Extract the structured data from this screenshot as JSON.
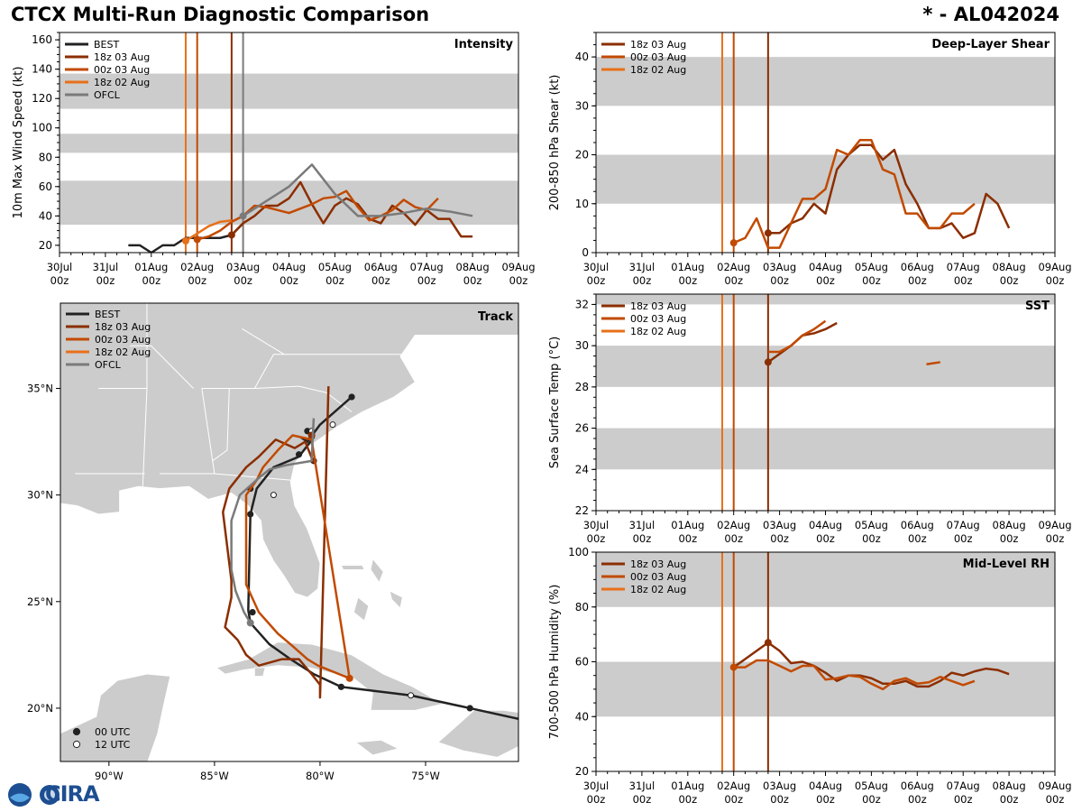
{
  "header": {
    "title": "CTCX Multi-Run Diagnostic Comparison",
    "storm_id": "* - AL042024"
  },
  "colors": {
    "best": "#222222",
    "run18z03": "#8b2e00",
    "run00z03": "#c24a00",
    "run18z02": "#e8701a",
    "ofcl": "#7a7a7a",
    "band": "#cccccc"
  },
  "time_axis": {
    "ticks": [
      "30Jul",
      "31Jul",
      "01Aug",
      "02Aug",
      "03Aug",
      "04Aug",
      "05Aug",
      "06Aug",
      "07Aug",
      "08Aug",
      "09Aug"
    ],
    "sublabel": "00z"
  },
  "chart_data": [
    {
      "id": "intensity",
      "type": "line",
      "title": "Intensity",
      "xlabel": "",
      "ylabel": "10m Max Wind Speed (kt)",
      "xlim": [
        0,
        10
      ],
      "ylim": [
        15,
        165
      ],
      "yticks": [
        20,
        40,
        60,
        80,
        100,
        120,
        140,
        160
      ],
      "bands": [
        [
          34,
          64
        ],
        [
          83,
          96
        ],
        [
          113,
          137
        ]
      ],
      "vlines": [
        {
          "x": 2.75,
          "series": "run18z02"
        },
        {
          "x": 3.0,
          "series": "run00z03"
        },
        {
          "x": 3.75,
          "series": "run18z03"
        },
        {
          "x": 4.0,
          "series": "ofcl"
        }
      ],
      "legend": [
        "BEST",
        "18z 03 Aug",
        "00z 03 Aug",
        "18z 02 Aug",
        "OFCL"
      ],
      "legend_series": [
        "best",
        "run18z03",
        "run00z03",
        "run18z02",
        "ofcl"
      ],
      "series": [
        {
          "name": "BEST",
          "key": "best",
          "x": [
            1.5,
            1.75,
            2.0,
            2.25,
            2.5,
            2.75,
            3.0,
            3.25,
            3.5,
            3.75,
            4.0
          ],
          "y": [
            20,
            20,
            15,
            20,
            20,
            25,
            25,
            25,
            25,
            27,
            35
          ]
        },
        {
          "name": "18z 03 Aug",
          "key": "run18z03",
          "x": [
            3.75,
            4.0,
            4.25,
            4.5,
            4.75,
            5.0,
            5.25,
            5.5,
            5.75,
            6.0,
            6.25,
            6.5,
            6.75,
            7.0,
            7.25,
            7.5,
            7.75,
            8.0,
            8.25,
            8.5,
            8.75,
            9.0
          ],
          "y": [
            27,
            35,
            40,
            47,
            47,
            52,
            63,
            48,
            35,
            47,
            52,
            48,
            38,
            35,
            47,
            42,
            34,
            44,
            38,
            38,
            26,
            26
          ],
          "dot": [
            3.75,
            27
          ]
        },
        {
          "name": "00z 03 Aug",
          "key": "run00z03",
          "x": [
            3.0,
            3.25,
            3.5,
            3.75,
            4.0,
            4.25,
            4.5,
            4.75,
            5.0,
            5.25,
            5.5,
            5.75,
            6.0,
            6.25,
            6.5,
            6.75,
            7.0,
            7.25,
            7.5,
            7.75,
            8.0,
            8.25
          ],
          "y": [
            24,
            26,
            30,
            36,
            40,
            47,
            46,
            44,
            42,
            45,
            48,
            52,
            53,
            57,
            46,
            37,
            40,
            44,
            51,
            46,
            44,
            52
          ],
          "dot": [
            3.0,
            24
          ]
        },
        {
          "name": "18z 02 Aug",
          "key": "run18z02",
          "x": [
            2.75,
            3.0,
            3.25,
            3.5,
            3.75
          ],
          "y": [
            23,
            28,
            33,
            36,
            37
          ],
          "dot": [
            2.75,
            23
          ]
        },
        {
          "name": "OFCL",
          "key": "ofcl",
          "x": [
            4.0,
            4.5,
            5.0,
            5.5,
            6.0,
            6.5,
            7.0,
            7.5,
            8.0,
            8.5,
            9.0
          ],
          "y": [
            40,
            50,
            60,
            75,
            55,
            40,
            40,
            42,
            45,
            43,
            40
          ],
          "dot": [
            4.0,
            40
          ]
        }
      ]
    },
    {
      "id": "shear",
      "type": "line",
      "title": "Deep-Layer Shear",
      "xlabel": "",
      "ylabel": "200-850 hPa Shear (kt)",
      "xlim": [
        0,
        10
      ],
      "ylim": [
        0,
        45
      ],
      "yticks": [
        0,
        10,
        20,
        30,
        40
      ],
      "bands": [
        [
          10,
          20
        ],
        [
          30,
          40
        ]
      ],
      "vlines": [
        {
          "x": 2.75,
          "series": "run18z02"
        },
        {
          "x": 3.0,
          "series": "run00z03"
        },
        {
          "x": 3.75,
          "series": "run18z03"
        }
      ],
      "legend": [
        "18z 03 Aug",
        "00z 03 Aug",
        "18z 02 Aug"
      ],
      "legend_series": [
        "run18z03",
        "run00z03",
        "run18z02"
      ],
      "series": [
        {
          "name": "18z 03 Aug",
          "key": "run18z03",
          "x": [
            3.75,
            4.0,
            4.25,
            4.5,
            4.75,
            5.0,
            5.25,
            5.5,
            5.75,
            6.0,
            6.25,
            6.5,
            6.75,
            7.0,
            7.25,
            7.5,
            7.75,
            8.0,
            8.25,
            8.5,
            8.75,
            9.0
          ],
          "y": [
            4,
            4,
            6,
            7,
            10,
            8,
            17,
            20,
            22,
            22,
            19,
            21,
            14,
            10,
            5,
            5,
            6,
            3,
            4,
            12,
            10,
            5
          ],
          "dot": [
            3.75,
            4
          ]
        },
        {
          "name": "00z 03 Aug",
          "key": "run00z03",
          "x": [
            3.0,
            3.25,
            3.5,
            3.75,
            4.0,
            4.25,
            4.5,
            4.75,
            5.0,
            5.25,
            5.5,
            5.75,
            6.0,
            6.25,
            6.5,
            6.75,
            7.0,
            7.25,
            7.5,
            7.75,
            8.0,
            8.25
          ],
          "y": [
            2,
            3,
            7,
            1,
            1,
            6,
            11,
            11,
            13,
            21,
            20,
            23,
            23,
            17,
            16,
            8,
            8,
            5,
            5,
            8,
            8,
            10
          ],
          "dot": [
            3.0,
            2
          ]
        },
        {
          "name": "18z 02 Aug",
          "key": "run18z02",
          "x": [],
          "y": []
        }
      ]
    },
    {
      "id": "sst",
      "type": "line",
      "title": "SST",
      "xlabel": "",
      "ylabel": "Sea Surface Temp (°C)",
      "xlim": [
        0,
        10
      ],
      "ylim": [
        22,
        32.5
      ],
      "yticks": [
        22,
        24,
        26,
        28,
        30,
        32
      ],
      "bands": [
        [
          24,
          26
        ],
        [
          28,
          30
        ],
        [
          32,
          33
        ]
      ],
      "vlines": [
        {
          "x": 2.75,
          "series": "run18z02"
        },
        {
          "x": 3.0,
          "series": "run00z03"
        },
        {
          "x": 3.75,
          "series": "run18z03"
        }
      ],
      "legend": [
        "18z 03 Aug",
        "00z 03 Aug",
        "18z 02 Aug"
      ],
      "legend_series": [
        "run18z03",
        "run00z03",
        "run18z02"
      ],
      "series": [
        {
          "name": "18z 03 Aug",
          "key": "run18z03",
          "x": [
            3.75,
            4.0,
            4.25,
            4.5,
            4.75,
            5.0,
            5.25
          ],
          "y": [
            29.2,
            29.6,
            30.0,
            30.5,
            30.6,
            30.8,
            31.1
          ],
          "dot": [
            3.75,
            29.2
          ]
        },
        {
          "name": "00z 03 Aug",
          "key": "run00z03",
          "x": [
            3.75,
            4.0,
            4.25,
            4.5,
            4.75,
            5.0
          ],
          "y": [
            29.7,
            29.7,
            30.0,
            30.5,
            30.8,
            31.2
          ]
        },
        {
          "name": "00z 03 Aug seg",
          "key": "run00z03",
          "x": [
            7.2,
            7.5
          ],
          "y": [
            29.1,
            29.2
          ]
        }
      ]
    },
    {
      "id": "rh",
      "type": "line",
      "title": "Mid-Level RH",
      "xlabel": "",
      "ylabel": "700-500 hPa Humidity (%)",
      "xlim": [
        0,
        10
      ],
      "ylim": [
        20,
        100
      ],
      "yticks": [
        20,
        40,
        60,
        80,
        100
      ],
      "bands": [
        [
          40,
          60
        ],
        [
          80,
          100
        ]
      ],
      "vlines": [
        {
          "x": 2.75,
          "series": "run18z02"
        },
        {
          "x": 3.0,
          "series": "run00z03"
        },
        {
          "x": 3.75,
          "series": "run18z03"
        }
      ],
      "legend": [
        "18z 03 Aug",
        "00z 03 Aug",
        "18z 02 Aug"
      ],
      "legend_series": [
        "run18z03",
        "run00z03",
        "run18z02"
      ],
      "series": [
        {
          "name": "18z 03 Aug",
          "key": "run18z03",
          "x": [
            3.0,
            3.25,
            3.5,
            3.75,
            4.0,
            4.25,
            4.5,
            4.75,
            5.0,
            5.25,
            5.5,
            5.75,
            6.0,
            6.25,
            6.5,
            6.75,
            7.0,
            7.25,
            7.5,
            7.75,
            8.0,
            8.25,
            8.5,
            8.75,
            9.0
          ],
          "y": [
            58,
            61,
            64,
            67,
            64,
            59.5,
            60,
            58.5,
            56,
            53,
            55,
            55,
            54,
            52,
            52,
            53,
            51,
            51,
            53,
            56,
            55,
            56.5,
            57.5,
            57,
            55.5
          ],
          "dot": [
            3.75,
            67
          ]
        },
        {
          "name": "00z 03 Aug",
          "key": "run00z03",
          "x": [
            3.0,
            3.25,
            3.5,
            3.75,
            4.0,
            4.25,
            4.5,
            4.75,
            5.0,
            5.25,
            5.5,
            5.75,
            6.0,
            6.25,
            6.5,
            6.75,
            7.0,
            7.25,
            7.5,
            7.75,
            8.0,
            8.25
          ],
          "y": [
            58,
            58,
            60.5,
            60.5,
            58.5,
            56.5,
            58.5,
            58.5,
            53.5,
            54,
            55,
            54.5,
            52,
            50,
            53,
            54,
            52,
            52.5,
            54.5,
            53,
            51.5,
            53
          ],
          "dot": [
            3.0,
            58
          ]
        },
        {
          "name": "18z 02 Aug",
          "key": "run18z02",
          "x": [],
          "y": []
        }
      ]
    },
    {
      "id": "track",
      "type": "line",
      "title": "Track",
      "xlabel": "",
      "ylabel": "",
      "xlim": [
        -92.3,
        -70.6
      ],
      "ylim": [
        17.5,
        39.0
      ],
      "xticks": [
        -90,
        -85,
        -80,
        -75
      ],
      "xtick_labels": [
        "90°W",
        "85°W",
        "80°W",
        "75°W"
      ],
      "yticks": [
        20,
        25,
        30,
        35
      ],
      "ytick_labels": [
        "20°N",
        "25°N",
        "30°N",
        "35°N"
      ],
      "legend": [
        "BEST",
        "18z 03 Aug",
        "00z 03 Aug",
        "18z 02 Aug",
        "OFCL"
      ],
      "legend_series": [
        "best",
        "run18z03",
        "run00z03",
        "run18z02",
        "ofcl"
      ],
      "marker_legend": [
        "00 UTC",
        "12 UTC"
      ],
      "series": [
        {
          "name": "BEST",
          "key": "best",
          "lon": [
            -70.6,
            -72.9,
            -75.7,
            -79.0,
            -80.3,
            -81.4,
            -82.4,
            -83.3,
            -83.4,
            -83.3,
            -83.0,
            -82.2,
            -81.0,
            -80.3,
            -80.3,
            -80.6,
            -80.9,
            -80.6,
            -80.0,
            -78.5
          ],
          "lat": [
            19.5,
            20.0,
            20.6,
            21.0,
            21.6,
            22.3,
            23.0,
            24.0,
            24.6,
            29.1,
            30.3,
            31.3,
            31.8,
            32.7,
            33.0,
            32.5,
            32.7,
            32.5,
            33.3,
            34.6
          ],
          "filled": [
            [
              -72.9,
              20.0
            ],
            [
              -79.0,
              21.0
            ],
            [
              -83.2,
              24.5
            ],
            [
              -83.3,
              29.1
            ],
            [
              -83.3,
              30.3
            ],
            [
              -81.0,
              31.9
            ],
            [
              -80.3,
              31.6
            ],
            [
              -80.6,
              33.0
            ],
            [
              -78.5,
              34.6
            ]
          ],
          "hollow": [
            [
              -75.7,
              20.6
            ],
            [
              -82.2,
              30.0
            ],
            [
              -80.4,
              33.0
            ],
            [
              -79.4,
              33.3
            ]
          ]
        },
        {
          "name": "18z 03 Aug",
          "key": "run18z03",
          "lon": [
            -80.3,
            -80.7,
            -81.2,
            -82.1,
            -82.9,
            -83.5,
            -84.3,
            -84.6,
            -84.4,
            -84.2,
            -84.2,
            -84.5,
            -83.9,
            -83.5,
            -82.9,
            -81.8,
            -81.0,
            -80.4,
            -80.0,
            -80.0,
            -79.6
          ],
          "lat": [
            31.5,
            32.5,
            32.2,
            32.6,
            31.8,
            31.3,
            30.3,
            29.2,
            27.6,
            26.0,
            25.2,
            23.8,
            23.2,
            22.5,
            22.0,
            22.3,
            22.3,
            21.6,
            21.1,
            20.5,
            35.1
          ],
          "dot": [
            -80.4,
            32.8
          ]
        },
        {
          "name": "00z 03 Aug",
          "key": "run00z03",
          "lon": [
            -78.6,
            -80.1,
            -80.6,
            -81.4,
            -82.0,
            -82.9,
            -83.5,
            -83.5,
            -83.5,
            -83.0,
            -82.7,
            -82.0,
            -81.3,
            -80.4,
            -78.6
          ],
          "lat": [
            21.4,
            22.0,
            22.3,
            23.0,
            23.5,
            24.5,
            25.8,
            28.0,
            30.0,
            30.7,
            31.3,
            32.1,
            32.8,
            32.6,
            21.4
          ],
          "dot": [
            -78.6,
            21.4
          ]
        },
        {
          "name": "OFCL",
          "key": "ofcl",
          "lon": [
            -83.3,
            -83.6,
            -84.0,
            -84.2,
            -84.2,
            -83.8,
            -82.9,
            -82.4,
            -81.6,
            -80.4,
            -80.3
          ],
          "lat": [
            24.0,
            24.5,
            25.5,
            26.5,
            28.8,
            30.0,
            30.8,
            31.2,
            31.4,
            31.6,
            33.6
          ],
          "dot": [
            -83.3,
            24.0
          ]
        }
      ]
    }
  ],
  "track_map": {
    "land": "Southeastern United States, Gulf of Mexico coast, Cuba, Hispaniola, Bahamas"
  },
  "footer": {
    "logo_text": "CIRA"
  }
}
